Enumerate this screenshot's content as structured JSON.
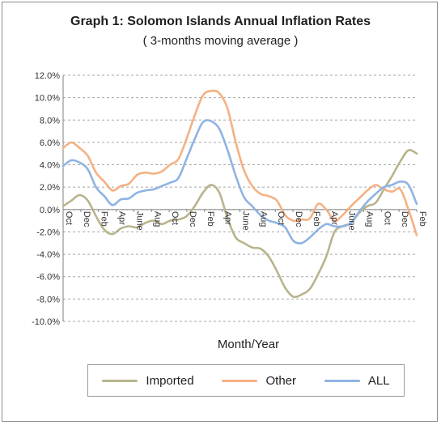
{
  "title": "Graph 1:  Solomon Islands Annual Inflation Rates",
  "subtitle": "( 3-months moving average )",
  "colors": {
    "imported": "#b8b48c",
    "other": "#f4b183",
    "all": "#8fb4e3",
    "grid": "#a6a6a6",
    "axis": "#7f7f7f",
    "text": "#333333"
  },
  "chart_data": {
    "type": "line",
    "xlabel": "Month/Year",
    "ylabel": "",
    "ylim": [
      -10,
      12
    ],
    "yticks": [
      "12.0%",
      "10.0%",
      "8.0%",
      "6.0%",
      "4.0%",
      "2.0%",
      "0.0%",
      "-2.0%",
      "-4.0%",
      "-6.0%",
      "-8.0%",
      "-10.0%"
    ],
    "ytick_values": [
      12,
      10,
      8,
      6,
      4,
      2,
      0,
      -2,
      -4,
      -6,
      -8,
      -10
    ],
    "xticks": [
      "Oct",
      "Dec",
      "Feb",
      "Apr",
      "June",
      "Aug",
      "Oct",
      "Dec",
      "Feb",
      "Apr",
      "June",
      "Aug",
      "Oct",
      "Dec",
      "Feb",
      "Apr",
      "June",
      "Aug",
      "Oct",
      "Dec",
      "Feb"
    ],
    "grid": "horizontal dashed",
    "legend_position": "bottom",
    "series": [
      {
        "name": "Imported",
        "key": "imported",
        "values": [
          0.3,
          0.8,
          1.3,
          0.8,
          -0.6,
          -1.8,
          -2.2,
          -1.7,
          -1.5,
          -1.6,
          -1.2,
          -1.0,
          -1.3,
          -1.0,
          -0.9,
          -0.6,
          0.3,
          1.5,
          2.2,
          1.5,
          -0.8,
          -2.5,
          -3.0,
          -3.4,
          -3.5,
          -4.2,
          -5.5,
          -7.0,
          -7.8,
          -7.6,
          -7.1,
          -5.8,
          -4.2,
          -2.0,
          -1.5,
          -1.2,
          -0.3,
          0.3,
          0.6,
          1.8,
          3.0,
          4.3,
          5.3,
          5.0
        ]
      },
      {
        "name": "Other",
        "key": "other",
        "values": [
          5.5,
          6.0,
          5.5,
          4.8,
          3.3,
          2.5,
          1.7,
          2.1,
          2.3,
          3.1,
          3.3,
          3.2,
          3.4,
          4.0,
          4.5,
          6.3,
          8.4,
          10.2,
          10.6,
          10.4,
          9.0,
          6.0,
          3.5,
          2.1,
          1.4,
          1.2,
          0.8,
          -0.5,
          -1.0,
          -0.9,
          -0.8,
          0.5,
          0.0,
          -1.0,
          -0.5,
          0.3,
          1.0,
          1.7,
          2.2,
          1.8,
          1.6,
          1.8,
          0.0,
          -2.3
        ]
      },
      {
        "name": "ALL",
        "key": "all",
        "values": [
          3.9,
          4.4,
          4.2,
          3.6,
          2.0,
          1.2,
          0.4,
          0.9,
          1.0,
          1.5,
          1.7,
          1.8,
          2.1,
          2.4,
          2.8,
          4.5,
          6.3,
          7.8,
          7.9,
          7.2,
          5.3,
          3.0,
          1.1,
          0.3,
          -0.5,
          -1.0,
          -1.2,
          -1.6,
          -2.8,
          -3.0,
          -2.5,
          -1.8,
          -1.3,
          -1.5,
          -1.5,
          -1.2,
          -0.2,
          0.7,
          1.4,
          2.0,
          2.2,
          2.5,
          2.2,
          0.5
        ]
      }
    ]
  }
}
